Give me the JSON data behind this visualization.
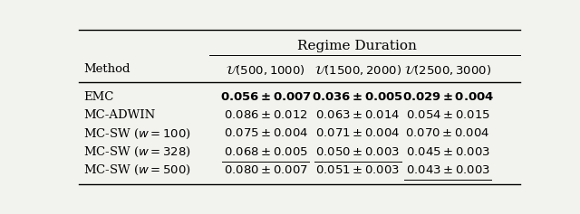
{
  "title": "Regime Duration",
  "col_headers": [
    "\\mathcal{U}(500, 1000)",
    "\\mathcal{U}(1500, 2000)",
    "\\mathcal{U}(2500, 3000)"
  ],
  "row_labels": [
    "EMC",
    "MC-ADWIN",
    "MC-SW ($w = 100$)",
    "MC-SW ($w = 328$)",
    "MC-SW ($w = 500$)"
  ],
  "cell_data": [
    [
      "$\\mathbf{0.056 \\pm 0.007}$",
      "$\\mathbf{0.036 \\pm 0.005}$",
      "$\\mathbf{0.029 \\pm 0.004}$"
    ],
    [
      "$0.086 \\pm 0.012$",
      "$0.063 \\pm 0.014$",
      "$0.054 \\pm 0.015$"
    ],
    [
      "$0.075 \\pm 0.004$",
      "$0.071 \\pm 0.004$",
      "$0.070 \\pm 0.004$"
    ],
    [
      "$0.068 \\pm 0.005$",
      "$0.050 \\pm 0.003$",
      "$0.045 \\pm 0.003$"
    ],
    [
      "$0.080 \\pm 0.007$",
      "$0.051 \\pm 0.003$",
      "$0.043 \\pm 0.003$"
    ]
  ],
  "underline_cells": [
    [
      3,
      0
    ],
    [
      3,
      1
    ],
    [
      4,
      2
    ]
  ],
  "bg_color": "#f2f2ee",
  "figsize": [
    6.4,
    2.37
  ],
  "dpi": 100
}
